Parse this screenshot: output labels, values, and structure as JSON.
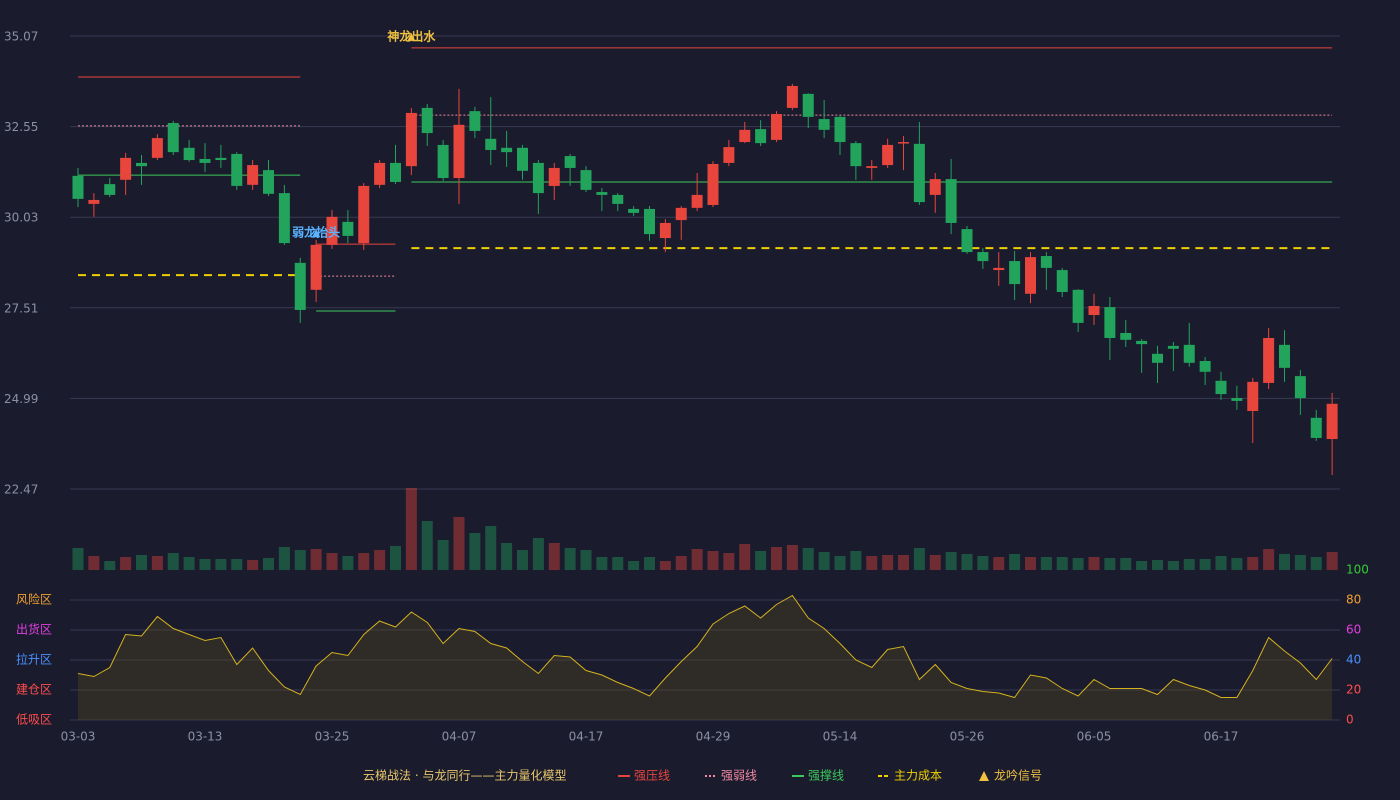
{
  "chart_data": {
    "type": "candlestick",
    "categories": [
      "03-03",
      null,
      null,
      null,
      null,
      null,
      null,
      null,
      "03-13",
      null,
      null,
      null,
      null,
      null,
      null,
      null,
      "03-25",
      null,
      null,
      null,
      null,
      null,
      null,
      null,
      "04-07",
      null,
      null,
      null,
      null,
      null,
      null,
      null,
      "04-17",
      null,
      null,
      null,
      null,
      null,
      null,
      null,
      "04-29",
      null,
      null,
      null,
      null,
      null,
      null,
      null,
      "05-14",
      null,
      null,
      null,
      null,
      null,
      null,
      null,
      "05-26",
      null,
      null,
      null,
      null,
      null,
      null,
      null,
      "06-05",
      null,
      null,
      null,
      null,
      null,
      null,
      null,
      "06-17",
      null,
      null,
      null,
      null,
      null,
      null,
      null
    ],
    "open": [
      31.18,
      30.4,
      30.95,
      31.07,
      31.54,
      31.68,
      32.65,
      31.96,
      31.65,
      31.68,
      31.79,
      30.93,
      31.34,
      30.7,
      28.76,
      28.01,
      29.26,
      29.9,
      29.31,
      30.93,
      31.54,
      31.45,
      33.07,
      32.04,
      31.12,
      32.98,
      32.21,
      31.96,
      31.96,
      31.54,
      30.9,
      31.73,
      31.34,
      30.73,
      30.65,
      30.26,
      30.26,
      29.45,
      29.95,
      30.29,
      30.37,
      31.54,
      32.12,
      32.48,
      32.18,
      33.07,
      33.46,
      32.76,
      32.82,
      32.09,
      31.4,
      31.48,
      32.09,
      32.07,
      30.65,
      31.09,
      29.7,
      29.06,
      28.56,
      28.81,
      27.9,
      28.95,
      28.56,
      28.01,
      27.31,
      27.53,
      26.81,
      26.59,
      26.23,
      26.45,
      26.48,
      26.03,
      25.48,
      25.0,
      24.64,
      25.42,
      26.48,
      25.61,
      24.45,
      23.86
    ],
    "high": [
      31.4,
      30.7,
      31.12,
      31.82,
      31.76,
      32.34,
      32.71,
      32.18,
      32.09,
      32.04,
      31.84,
      31.62,
      31.62,
      30.93,
      28.9,
      29.4,
      30.23,
      30.23,
      30.98,
      31.62,
      32.04,
      33.07,
      33.18,
      32.18,
      33.6,
      33.1,
      33.37,
      32.43,
      32.04,
      31.62,
      31.54,
      31.79,
      31.45,
      30.84,
      30.7,
      30.34,
      30.34,
      29.98,
      30.34,
      31.26,
      31.59,
      32.18,
      32.68,
      32.73,
      32.98,
      33.74,
      33.48,
      33.29,
      32.87,
      32.15,
      31.62,
      32.21,
      32.29,
      32.68,
      31.26,
      31.65,
      29.79,
      29.17,
      29.06,
      29.09,
      29.06,
      29.06,
      28.62,
      28.03,
      27.9,
      27.81,
      27.17,
      26.64,
      26.45,
      26.56,
      27.09,
      26.14,
      25.73,
      25.34,
      25.56,
      26.95,
      26.89,
      25.78,
      24.67,
      25.14
    ],
    "low": [
      30.31,
      30.04,
      30.59,
      30.65,
      30.93,
      31.62,
      31.76,
      31.57,
      31.29,
      31.4,
      30.79,
      30.79,
      30.62,
      29.26,
      27.09,
      27.67,
      29.15,
      29.31,
      29.12,
      30.84,
      30.95,
      31.2,
      32.01,
      31.04,
      30.4,
      32.23,
      31.48,
      31.43,
      31.07,
      30.12,
      30.51,
      30.9,
      30.73,
      30.2,
      30.2,
      30.06,
      29.37,
      29.06,
      29.4,
      30.2,
      30.31,
      31.45,
      32.09,
      32.01,
      32.12,
      33.01,
      32.51,
      32.23,
      31.76,
      31.07,
      31.07,
      31.4,
      31.34,
      30.37,
      30.15,
      29.56,
      29.01,
      28.59,
      28.12,
      27.73,
      27.64,
      28.01,
      27.81,
      26.84,
      27.03,
      26.06,
      26.42,
      25.7,
      25.42,
      25.75,
      25.87,
      25.36,
      24.95,
      24.67,
      23.75,
      25.25,
      25.45,
      24.53,
      23.81,
      22.86
    ],
    "close": [
      30.54,
      30.51,
      30.65,
      31.68,
      31.45,
      32.23,
      31.84,
      31.62,
      31.54,
      31.62,
      30.9,
      31.48,
      30.68,
      29.31,
      27.45,
      29.26,
      30.04,
      29.51,
      30.9,
      31.54,
      31.01,
      32.93,
      32.37,
      31.12,
      32.6,
      32.43,
      31.9,
      31.84,
      31.32,
      30.7,
      31.4,
      31.4,
      30.79,
      30.65,
      30.4,
      30.15,
      29.56,
      29.87,
      30.29,
      30.65,
      31.51,
      31.98,
      32.46,
      32.09,
      32.9,
      33.68,
      32.82,
      32.46,
      32.12,
      31.45,
      31.45,
      32.04,
      32.12,
      30.45,
      31.09,
      29.87,
      29.06,
      28.81,
      28.62,
      28.17,
      28.92,
      28.62,
      27.95,
      27.09,
      27.56,
      26.67,
      26.62,
      26.5,
      25.98,
      26.37,
      25.98,
      25.73,
      25.11,
      24.92,
      25.45,
      26.67,
      25.84,
      25.0,
      23.89,
      24.84
    ],
    "up_color": "#e8453c",
    "down_color": "#22a45d",
    "ylim": [
      22.47,
      35.07
    ],
    "yticks": [
      22.47,
      24.99,
      27.51,
      30.03,
      32.55,
      35.07
    ],
    "grid": true,
    "volume": [
      22,
      14,
      9,
      13,
      15,
      14,
      17,
      13,
      11,
      11,
      11,
      10,
      12,
      23,
      20,
      21,
      17,
      14,
      17,
      20,
      24,
      82,
      49,
      30,
      53,
      37,
      44,
      27,
      20,
      32,
      27,
      22,
      20,
      13,
      13,
      9,
      13,
      9,
      14,
      21,
      19,
      17,
      26,
      19,
      23,
      25,
      22,
      18,
      14,
      19,
      14,
      15,
      15,
      22,
      15,
      18,
      16,
      14,
      13,
      16,
      13,
      13,
      13,
      12,
      13,
      12,
      12,
      9,
      10,
      9,
      11,
      11,
      14,
      12,
      13,
      21,
      16,
      15,
      13,
      18
    ],
    "levels": [
      {
        "name": "强压线",
        "color": "#e8453c",
        "style": "solid"
      },
      {
        "name": "强弱线",
        "color": "#f28aa2",
        "style": "dotted"
      },
      {
        "name": "强撑线",
        "color": "#3cc85a",
        "style": "solid"
      },
      {
        "name": "主力成本",
        "color": "#f0d000",
        "style": "dashed"
      }
    ],
    "level_segments": [
      {
        "from": 0,
        "to": 14,
        "values": [
          33.93,
          32.57,
          31.2,
          28.42
        ]
      },
      {
        "from": 15,
        "to": 20,
        "values": [
          29.28,
          28.39,
          27.42,
          null
        ]
      },
      {
        "from": 21,
        "to": 79,
        "values": [
          34.74,
          32.87,
          31.01,
          29.17
        ]
      }
    ],
    "signals": {
      "name": "龙吟信号",
      "color": "#f0c040",
      "points": [
        {
          "index": 21,
          "label": "神龙出水",
          "color": "#f0c040"
        },
        {
          "index": 15,
          "label": "弱龙抬头",
          "color": "#5ab4ff"
        }
      ]
    },
    "legend_title": "云梯战法 · 与龙同行——主力量化模型",
    "oscillator": {
      "ylim": [
        0,
        100
      ],
      "yticks": [
        0,
        20,
        40,
        60,
        80,
        100
      ],
      "tick_colors": [
        "#ff4d4d",
        "#ff4d4d",
        "#4a90ff",
        "#e040e0",
        "#f0a030",
        "#33cc33"
      ],
      "zones": [
        {
          "value": 0,
          "label": "低吸区",
          "color": "#ff4d4d"
        },
        {
          "value": 20,
          "label": "建仓区",
          "color": "#ff4d4d"
        },
        {
          "value": 40,
          "label": "拉升区",
          "color": "#4a90ff"
        },
        {
          "value": 60,
          "label": "出货区",
          "color": "#e040e0"
        },
        {
          "value": 80,
          "label": "风险区",
          "color": "#f0a030"
        }
      ],
      "color": "#d4b21e",
      "values": [
        31,
        29,
        35,
        57,
        56,
        69,
        61,
        57,
        53,
        55,
        37,
        48,
        33,
        22,
        17,
        36,
        45,
        43,
        57,
        66,
        62,
        72,
        65,
        51,
        61,
        59,
        51,
        48,
        39,
        31,
        43,
        42,
        33,
        30,
        25,
        21,
        16,
        28,
        39,
        49,
        64,
        71,
        76,
        68,
        77,
        83,
        68,
        61,
        51,
        40,
        35,
        47,
        49,
        27,
        37,
        25,
        21,
        19,
        18,
        15,
        30,
        28,
        21,
        16,
        27,
        21,
        21,
        21,
        17,
        27,
        23,
        20,
        15,
        15,
        33,
        55,
        46,
        38,
        27,
        41
      ]
    }
  }
}
